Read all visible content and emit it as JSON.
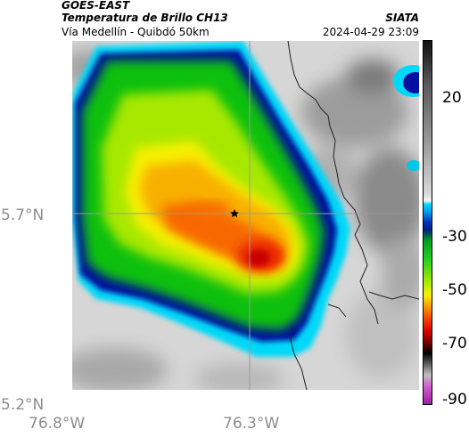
{
  "header": {
    "satellite": "GOES-EAST",
    "product": "Temperatura de Brillo CH13",
    "region": "Vía Medellín - Quibdó 50km",
    "organization": "SIATA",
    "timestamp": "2024-04-29 23:09"
  },
  "axes": {
    "x_ticks": [
      {
        "value": -76.8,
        "label": "76.8°W"
      },
      {
        "value": -76.3,
        "label": "76.3°W"
      }
    ],
    "y_ticks": [
      {
        "value": 5.7,
        "label": "5.7°N"
      },
      {
        "value": 5.2,
        "label": "5.2°N"
      }
    ]
  },
  "colorbar": {
    "ticks": [
      {
        "value": 20,
        "label": "20"
      },
      {
        "value": -30,
        "label": "-30"
      },
      {
        "value": -50,
        "label": "-50"
      },
      {
        "value": -70,
        "label": "-70"
      },
      {
        "value": -90,
        "label": "-90"
      }
    ],
    "colors": {
      "warm": "#e0e0e0",
      "gray": "#8a8a8a",
      "cyan": "#00d8f8",
      "blue": "#0010a0",
      "green": "#10c010",
      "yellow": "#f8f000",
      "orange": "#f86800",
      "red": "#d80000",
      "black": "#000000",
      "magenta": "#c040c0"
    }
  },
  "map": {
    "marker": "star-icon",
    "colors": {
      "border": "#202020",
      "gridline": "#9a9a9a",
      "background": "#d8d8d8"
    }
  }
}
